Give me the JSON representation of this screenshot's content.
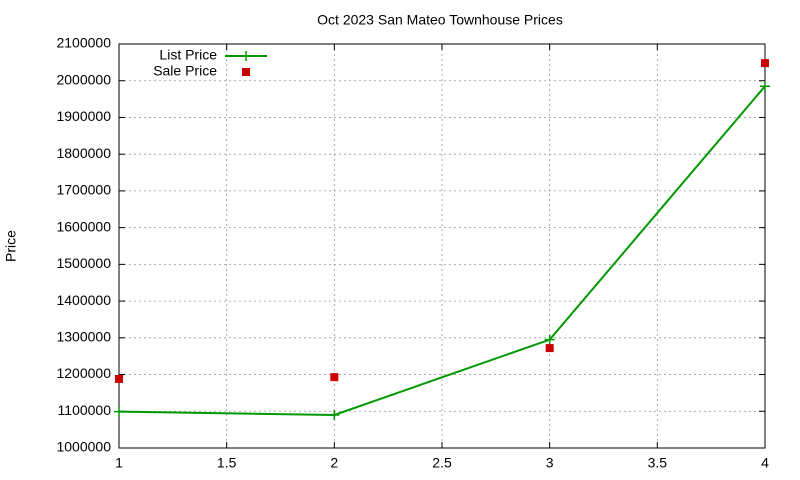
{
  "chart_data": {
    "type": "line",
    "title": "Oct 2023 San Mateo Townhouse Prices",
    "y_label": "Price",
    "x": [
      1,
      2,
      3,
      4
    ],
    "series": [
      {
        "name": "List Price",
        "color": "#009900",
        "mode": "linespoints",
        "values": [
          1099000,
          1090000,
          1295000,
          1985000
        ]
      },
      {
        "name": "Sale Price",
        "color": "#cc0000",
        "mode": "points",
        "values": [
          1188000,
          1193000,
          1272000,
          2048000
        ]
      }
    ],
    "xlim": [
      1,
      4
    ],
    "xticks": [
      1,
      1.5,
      2,
      2.5,
      3,
      3.5,
      4
    ],
    "ylim": [
      1000000,
      2100000
    ],
    "yticks": [
      1000000,
      1100000,
      1200000,
      1300000,
      1400000,
      1500000,
      1600000,
      1700000,
      1800000,
      1900000,
      2000000,
      2100000
    ],
    "grid": true,
    "legend": "top-left"
  }
}
